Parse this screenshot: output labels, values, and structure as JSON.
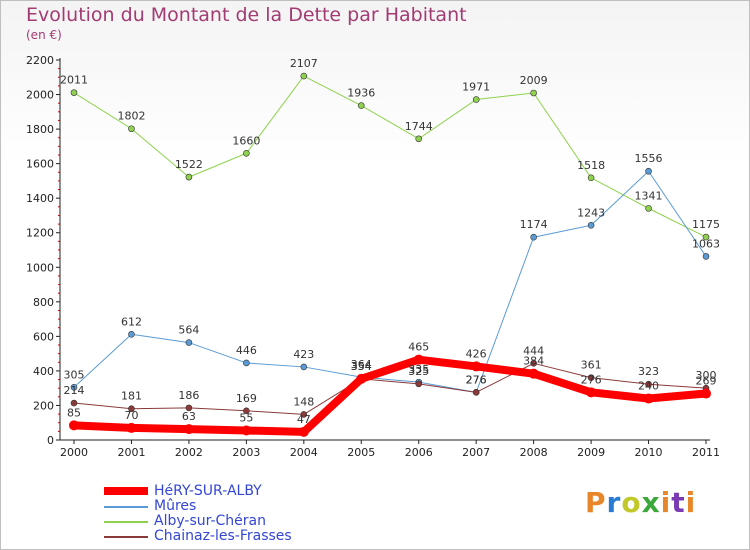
{
  "title": "Evolution du Montant de la Dette par Habitant",
  "subtitle": "(en €)",
  "logo": {
    "text": "Proxiti",
    "colors": [
      "#e8862a",
      "#2a7bd4",
      "#c2c82a",
      "#3aa83a",
      "#e8862a",
      "#7a3ab4",
      "#e8862a"
    ]
  },
  "chart_data": {
    "type": "line",
    "x": [
      "2000",
      "2001",
      "2002",
      "2003",
      "2004",
      "2005",
      "2006",
      "2007",
      "2008",
      "2009",
      "2010",
      "2011"
    ],
    "ylim": [
      0,
      2200
    ],
    "yticks": [
      0,
      200,
      400,
      600,
      800,
      1000,
      1200,
      1400,
      1600,
      1800,
      2000,
      2200
    ],
    "grid": false,
    "legend_position": "bottom-left",
    "series": [
      {
        "name": "HéRY-SUR-ALBY",
        "color": "#ff0000",
        "width": 8,
        "values": [
          85,
          70,
          63,
          55,
          47,
          354,
          465,
          426,
          384,
          276,
          240,
          269
        ]
      },
      {
        "name": "Mûres",
        "color": "#5b9bd5",
        "width": 1,
        "values": [
          305,
          612,
          564,
          446,
          423,
          364,
          335,
          276,
          1174,
          1243,
          1556,
          1063
        ]
      },
      {
        "name": "Alby-sur-Chéran",
        "color": "#8fd14f",
        "width": 1,
        "values": [
          2011,
          1802,
          1522,
          1660,
          2107,
          1936,
          1744,
          1971,
          2009,
          1518,
          1341,
          1175
        ]
      },
      {
        "name": "Chainaz-les-Frasses",
        "color": "#8b3a3a",
        "width": 1,
        "values": [
          214,
          181,
          186,
          169,
          148,
          354,
          325,
          276,
          444,
          361,
          323,
          300
        ]
      }
    ]
  }
}
